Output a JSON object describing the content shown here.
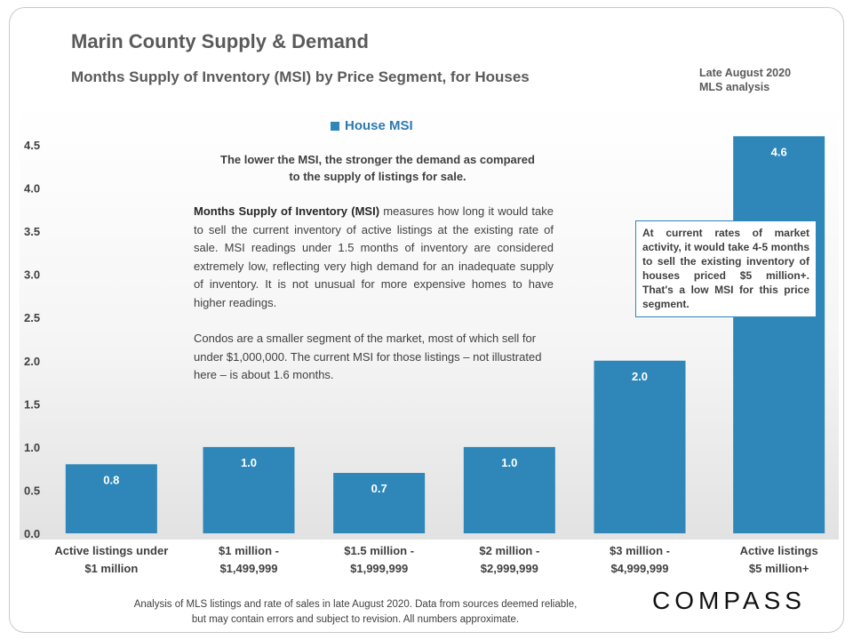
{
  "header": {
    "title": "Marin County Supply & Demand",
    "subtitle": "Months Supply of Inventory (MSI) by Price Segment, for Houses",
    "date_line1": "Late August  2020",
    "date_line2": "MLS analysis"
  },
  "legend": {
    "label": "House MSI",
    "color": "#2e87b8"
  },
  "notes": {
    "top": "The lower the MSI, the stronger the demand as compared to the supply of listings for sale.",
    "main_bold": "Months Supply of Inventory (MSI)",
    "main_rest": " measures how long it would take to sell the current inventory of active listings at the existing rate of sale. MSI readings under 1.5 months of inventory are considered extremely low, reflecting very high demand for an inadequate supply of inventory. It is not unusual for more expensive homes to have higher readings.",
    "condos": "Condos are a smaller segment of the market, most of which sell for under $1,000,000. The current MSI for those listings – not illustrated here – is about 1.6 months.",
    "callout": "At current rates of market activity, it would take 4-5 months to sell the existing inventory of houses priced $5 million+. That's a  low MSI for this price segment."
  },
  "footer": {
    "note": "Analysis of MLS listings and rate of sales in late August 2020. Data from sources deemed reliable, but may contain errors and subject to revision. All numbers approximate.",
    "brand": "COMPASS"
  },
  "chart_data": {
    "type": "bar",
    "title": "Months Supply of Inventory (MSI) by Price Segment, for Houses",
    "series": [
      {
        "name": "House MSI",
        "values": [
          0.8,
          1.0,
          0.7,
          1.0,
          2.0,
          4.6
        ]
      }
    ],
    "categories": [
      [
        "Active listings under",
        "$1 million"
      ],
      [
        "$1 million -",
        "$1,499,999"
      ],
      [
        "$1.5 million -",
        "$1,999,999"
      ],
      [
        "$2 million -",
        "$2,999,999"
      ],
      [
        "$3 million -",
        "$4,999,999"
      ],
      [
        "Active listings",
        "$5 million+"
      ]
    ],
    "value_labels": [
      "0.8",
      "1.0",
      "0.7",
      "1.0",
      "2.0",
      "4.6"
    ],
    "yticks": [
      "0.0",
      "0.5",
      "1.0",
      "1.5",
      "2.0",
      "2.5",
      "3.0",
      "3.5",
      "4.0",
      "4.5"
    ],
    "ylim": [
      0,
      4.5
    ],
    "xlabel": "",
    "ylabel": "",
    "bar_color": "#2e87b8"
  }
}
